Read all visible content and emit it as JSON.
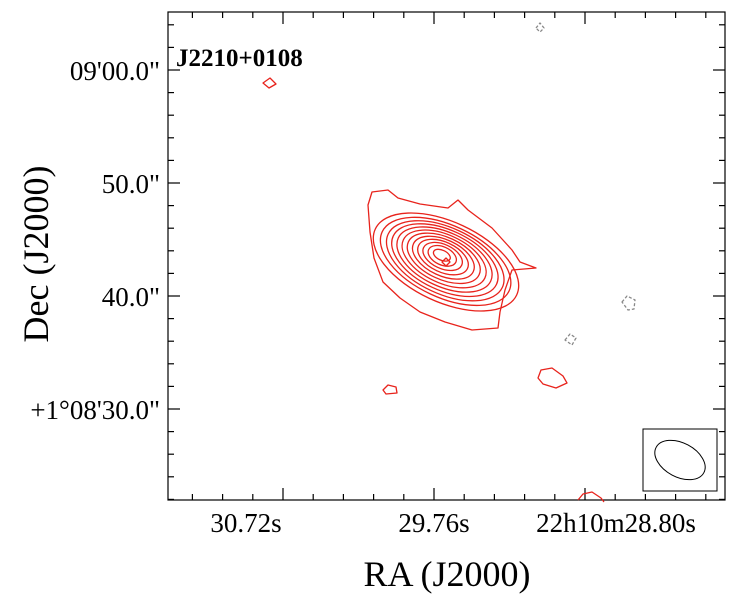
{
  "chart_data": {
    "type": "contour",
    "title": "",
    "source_label": "J2210+0108",
    "xlabel": "RA (J2000)",
    "ylabel": "Dec (J2000)",
    "x_ticks": [
      "30.72s",
      "29.76s",
      "22h10m28.80s"
    ],
    "y_ticks": [
      "09'00.0\"",
      "50.0\"",
      "40.0\"",
      "+1°08'30.0\""
    ],
    "contour_colors": {
      "positive": "#e8231c",
      "negative": "#888888"
    },
    "positive_contour_levels": 13,
    "beam": {
      "shape": "ellipse",
      "position": "bottom-right"
    }
  }
}
